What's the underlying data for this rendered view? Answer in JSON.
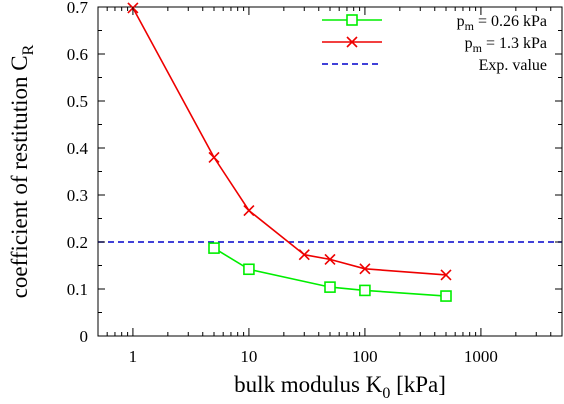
{
  "chart_data": {
    "type": "line",
    "xscale": "log",
    "xlim": [
      0.5,
      5000
    ],
    "ylim": [
      0,
      0.7
    ],
    "xticks": [
      {
        "value": 1,
        "label": "1"
      },
      {
        "value": 10,
        "label": "10"
      },
      {
        "value": 100,
        "label": "100"
      },
      {
        "value": 1000,
        "label": "1000"
      }
    ],
    "yticks": [
      {
        "value": 0,
        "label": "0"
      },
      {
        "value": 0.1,
        "label": "0.1"
      },
      {
        "value": 0.2,
        "label": "0.2"
      },
      {
        "value": 0.3,
        "label": "0.3"
      },
      {
        "value": 0.4,
        "label": "0.4"
      },
      {
        "value": 0.5,
        "label": "0.5"
      },
      {
        "value": 0.6,
        "label": "0.6"
      },
      {
        "value": 0.7,
        "label": "0.7"
      }
    ],
    "xlabel": {
      "main": "bulk modulus K",
      "sub": "0",
      "unit": " [kPa]"
    },
    "ylabel": {
      "main": "coefficient of restitution C",
      "sub": "R"
    },
    "legend_position": "top-right",
    "series": [
      {
        "legend_main": "p",
        "legend_sub": "m",
        "legend_rest": " = 0.26 kPa",
        "color": "#00ee00",
        "marker": "square",
        "points": [
          [
            5,
            0.187
          ],
          [
            10,
            0.142
          ],
          [
            50,
            0.104
          ],
          [
            100,
            0.097
          ],
          [
            500,
            0.085
          ]
        ]
      },
      {
        "legend_main": "p",
        "legend_sub": "m",
        "legend_rest": " = 1.3 kPa",
        "color": "#ee0000",
        "marker": "cross",
        "points": [
          [
            1,
            0.698
          ],
          [
            5,
            0.38
          ],
          [
            10,
            0.267
          ],
          [
            30,
            0.173
          ],
          [
            50,
            0.163
          ],
          [
            100,
            0.143
          ],
          [
            500,
            0.13
          ]
        ]
      }
    ],
    "reference_line": {
      "label": "Exp. value",
      "y": 0.2,
      "color": "#0000cc",
      "style": "dashed"
    }
  }
}
